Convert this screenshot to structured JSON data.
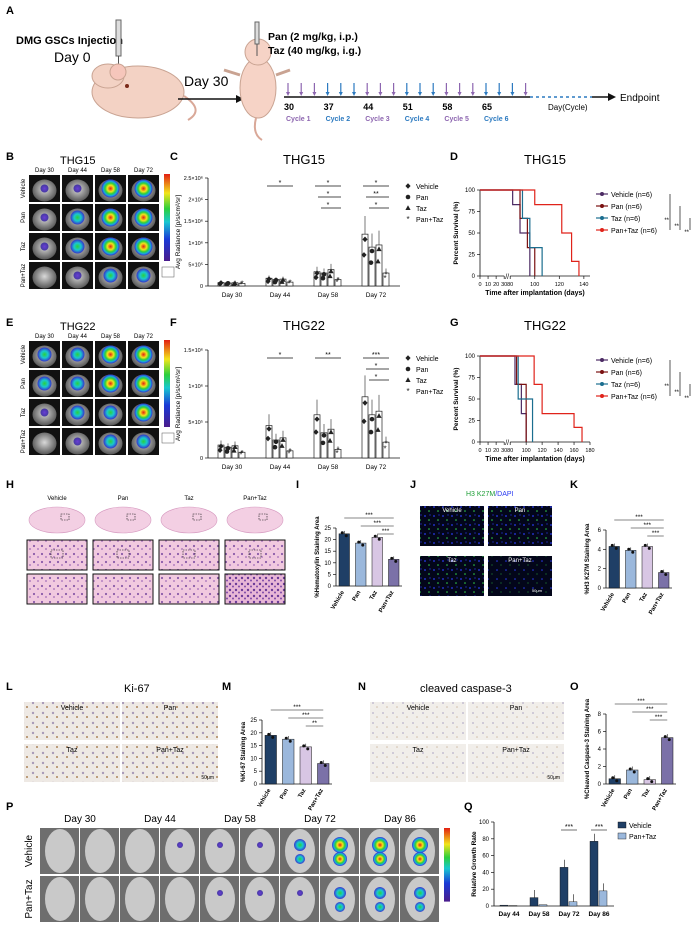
{
  "colors": {
    "vehicle": "#4b2a63",
    "pan": "#7a1111",
    "taz": "#1b6e8f",
    "pantaz": "#e0231a",
    "bar_vehicle": "#1f3f66",
    "bar_pan": "#9bb8dc",
    "bar_taz": "#d8c6e4",
    "bar_pantaz": "#7b71a8",
    "cycle_purple": "#8d66b0",
    "cycle_blue": "#2c7ac0"
  },
  "panel_letters": {
    "a": "A",
    "b": "B",
    "c": "C",
    "d": "D",
    "e": "E",
    "f": "F",
    "g": "G",
    "h": "H",
    "i": "I",
    "j": "J",
    "k": "K",
    "l": "L",
    "m": "M",
    "n": "N",
    "o": "O",
    "p": "P",
    "q": "Q"
  },
  "schematic": {
    "injection": "DMG GSCs Injection",
    "day0": "Day 0",
    "day30": "Day 30",
    "dose_pan": "Pan (2 mg/kg, i.p.)",
    "dose_taz": "Taz (40 mg/kg, i.g.)",
    "days": [
      "30",
      "37",
      "44",
      "51",
      "58",
      "65"
    ],
    "cycles": [
      "Cycle 1",
      "Cycle 2",
      "Cycle 3",
      "Cycle 4",
      "Cycle 5",
      "Cycle 6"
    ],
    "axis_label": "Day(Cycle)",
    "endpoint": "Endpoint"
  },
  "imaging": {
    "thg15_title": "THG15",
    "thg22_title": "THG22",
    "days": [
      "Day 30",
      "Day 44",
      "Day 58",
      "Day 72"
    ],
    "groups": [
      "Vehicle",
      "Pan",
      "Taz",
      "Pan+Taz"
    ]
  },
  "legend_bar": [
    "Vehicle",
    "Pan",
    "Taz",
    "Pan+Taz"
  ],
  "survival_legend": [
    "Vehicle (n=6)",
    "Pan (n=6)",
    "Taz (n=6)",
    "Pan+Taz (n=6)"
  ],
  "chart_data": [
    {
      "panel": "C",
      "type": "bar",
      "title": "THG15",
      "ylabel": "Avg Radiance [p/s/cm²/sr]",
      "categories": [
        "Day 30",
        "Day 44",
        "Day 58",
        "Day 72"
      ],
      "yticks": [
        "0",
        "5×10⁵",
        "1×10⁶",
        "1.5×10⁶",
        "2×10⁶",
        "2.5×10⁶"
      ],
      "ylim": [
        0,
        2500000
      ],
      "series": [
        {
          "name": "Vehicle",
          "values": [
            80000,
            180000,
            330000,
            1200000
          ]
        },
        {
          "name": "Pan",
          "values": [
            70000,
            150000,
            300000,
            900000
          ]
        },
        {
          "name": "Taz",
          "values": [
            75000,
            160000,
            380000,
            950000
          ]
        },
        {
          "name": "Pan+Taz",
          "values": [
            60000,
            90000,
            150000,
            300000
          ]
        }
      ],
      "sig": [
        {
          "group": 1,
          "label": "*"
        },
        {
          "group": 2,
          "label": "*"
        },
        {
          "group": 2,
          "label": "*"
        },
        {
          "group": 2,
          "label": "*"
        },
        {
          "group": 3,
          "label": "*"
        },
        {
          "group": 3,
          "label": "**"
        },
        {
          "group": 3,
          "label": "*"
        }
      ]
    },
    {
      "panel": "F",
      "type": "bar",
      "title": "THG22",
      "ylabel": "Avg Radiance [p/s/cm²/sr]",
      "categories": [
        "Day 30",
        "Day 44",
        "Day 58",
        "Day 72"
      ],
      "yticks": [
        "0",
        "5×10⁵",
        "1×10⁶",
        "1.5×10⁶"
      ],
      "ylim": [
        0,
        1500000
      ],
      "series": [
        {
          "name": "Vehicle",
          "values": [
            180000,
            450000,
            600000,
            850000
          ]
        },
        {
          "name": "Pan",
          "values": [
            150000,
            250000,
            350000,
            600000
          ]
        },
        {
          "name": "Taz",
          "values": [
            170000,
            280000,
            400000,
            650000
          ]
        },
        {
          "name": "Pan+Taz",
          "values": [
            80000,
            100000,
            120000,
            220000
          ]
        }
      ],
      "sig": [
        {
          "group": 1,
          "label": "*"
        },
        {
          "group": 2,
          "label": "**"
        },
        {
          "group": 3,
          "label": "***"
        },
        {
          "group": 3,
          "label": "*"
        },
        {
          "group": 3,
          "label": "*"
        }
      ]
    },
    {
      "panel": "D",
      "type": "line",
      "title": "THG15",
      "xlabel": "Time after implantation (days)",
      "ylabel": "Percent Survival (%)",
      "xticks": [
        "0",
        "10",
        "20",
        "30",
        "80",
        "100",
        "120",
        "140"
      ],
      "yticks": [
        "0",
        "25",
        "50",
        "75",
        "100"
      ],
      "series": [
        {
          "name": "Vehicle (n=6)",
          "steps": [
            [
              0,
              100
            ],
            [
              82,
              100
            ],
            [
              82,
              83
            ],
            [
              88,
              83
            ],
            [
              88,
              50
            ],
            [
              96,
              50
            ],
            [
              96,
              0
            ]
          ]
        },
        {
          "name": "Pan (n=6)",
          "steps": [
            [
              0,
              100
            ],
            [
              88,
              100
            ],
            [
              88,
              67
            ],
            [
              94,
              67
            ],
            [
              94,
              33
            ],
            [
              100,
              33
            ],
            [
              100,
              0
            ]
          ]
        },
        {
          "name": "Taz (n=6)",
          "steps": [
            [
              0,
              100
            ],
            [
              90,
              100
            ],
            [
              90,
              67
            ],
            [
              96,
              67
            ],
            [
              96,
              33
            ],
            [
              106,
              33
            ],
            [
              106,
              0
            ]
          ]
        },
        {
          "name": "Pan+Taz (n=6)",
          "steps": [
            [
              0,
              100
            ],
            [
              100,
              100
            ],
            [
              100,
              83
            ],
            [
              122,
              83
            ],
            [
              122,
              50
            ],
            [
              130,
              50
            ],
            [
              130,
              17
            ],
            [
              136,
              17
            ],
            [
              136,
              0
            ]
          ]
        }
      ],
      "sig": [
        "**",
        "**",
        "**"
      ]
    },
    {
      "panel": "G",
      "type": "line",
      "title": "THG22",
      "xlabel": "Time after implantation (days)",
      "ylabel": "Percent Survival (%)",
      "xticks": [
        "0",
        "10",
        "20",
        "30",
        "80",
        "100",
        "120",
        "140",
        "160",
        "180"
      ],
      "yticks": [
        "0",
        "25",
        "50",
        "75",
        "100"
      ],
      "series": [
        {
          "name": "Vehicle (n=6)",
          "steps": [
            [
              0,
              100
            ],
            [
              86,
              100
            ],
            [
              86,
              67
            ],
            [
              94,
              67
            ],
            [
              94,
              33
            ],
            [
              100,
              33
            ],
            [
              100,
              0
            ]
          ]
        },
        {
          "name": "Pan (n=6)",
          "steps": [
            [
              0,
              100
            ],
            [
              88,
              100
            ],
            [
              88,
              67
            ],
            [
              100,
              67
            ],
            [
              100,
              0
            ]
          ]
        },
        {
          "name": "Taz (n=6)",
          "steps": [
            [
              0,
              100
            ],
            [
              90,
              100
            ],
            [
              90,
              50
            ],
            [
              108,
              50
            ],
            [
              108,
              0
            ]
          ]
        },
        {
          "name": "Pan+Taz (n=6)",
          "steps": [
            [
              0,
              100
            ],
            [
              110,
              100
            ],
            [
              110,
              67
            ],
            [
              120,
              67
            ],
            [
              120,
              33
            ],
            [
              160,
              33
            ],
            [
              160,
              17
            ],
            [
              170,
              17
            ],
            [
              170,
              0
            ]
          ]
        }
      ],
      "sig": [
        "**",
        "**",
        "**"
      ]
    },
    {
      "panel": "I",
      "type": "bar",
      "ylabel": "%Hematoxylin Staining Area",
      "categories": [
        "Vehicle",
        "Pan",
        "Taz",
        "Pan+Taz"
      ],
      "yticks": [
        "0",
        "5",
        "10",
        "15",
        "20",
        "25"
      ],
      "ylim": [
        0,
        25
      ],
      "values": [
        22.5,
        18.5,
        21,
        11.5
      ],
      "sig": [
        "***",
        "***",
        "***"
      ]
    },
    {
      "panel": "K",
      "type": "bar",
      "ylabel": "%H3 K27M Staining Area",
      "categories": [
        "Vehicle",
        "Pan",
        "Taz",
        "Pan+Taz"
      ],
      "yticks": [
        "0",
        "2",
        "4",
        "6"
      ],
      "ylim": [
        0,
        6
      ],
      "values": [
        4.3,
        3.9,
        4.3,
        1.6
      ],
      "sig": [
        "***",
        "***",
        "***"
      ]
    },
    {
      "panel": "M",
      "type": "bar",
      "ylabel": "%Ki-67 Staining Area",
      "categories": [
        "Vehicle",
        "Pan",
        "Taz",
        "Pan+Taz"
      ],
      "yticks": [
        "0",
        "5",
        "10",
        "15",
        "20",
        "25"
      ],
      "ylim": [
        0,
        25
      ],
      "values": [
        19,
        17.5,
        14.5,
        8
      ],
      "sig": [
        "***",
        "***",
        "**"
      ]
    },
    {
      "panel": "O",
      "type": "bar",
      "ylabel": "%Cleaved Caspase-3 Staining Area",
      "categories": [
        "Vehicle",
        "Pan",
        "Taz",
        "Pan+Taz"
      ],
      "yticks": [
        "0",
        "2",
        "4",
        "6",
        "8"
      ],
      "ylim": [
        0,
        8
      ],
      "values": [
        0.6,
        1.6,
        0.5,
        5.3
      ],
      "sig": [
        "***",
        "***",
        "***"
      ]
    },
    {
      "panel": "Q",
      "type": "bar",
      "ylabel": "Relative Growth Rate",
      "categories": [
        "Day 44",
        "Day 58",
        "Day 72",
        "Day 86"
      ],
      "yticks": [
        "0",
        "20",
        "40",
        "60",
        "80",
        "100"
      ],
      "ylim": [
        0,
        100
      ],
      "series": [
        {
          "name": "Vehicle",
          "values": [
            1,
            10,
            46,
            77
          ]
        },
        {
          "name": "Pan+Taz",
          "values": [
            0.5,
            1.5,
            5,
            18
          ]
        }
      ],
      "sig": [
        {
          "group": 2,
          "label": "***"
        },
        {
          "group": 3,
          "label": "***"
        }
      ]
    }
  ],
  "histology": {
    "h_groups": [
      "Vehicle",
      "Pan",
      "Taz",
      "Pan+Taz"
    ],
    "j_title": "H3 K27M/DAPI",
    "j_title_a": "H3 K27M",
    "j_title_b": "/DAPI",
    "j_groups": [
      "Vehicle",
      "Pan",
      "Taz",
      "Pan+Taz"
    ],
    "l_title": "Ki-67",
    "n_title": "cleaved caspase-3",
    "groups": [
      "Vehicle",
      "Pan",
      "Taz",
      "Pan+Taz"
    ],
    "scale": "50μm"
  },
  "p_panel": {
    "days": [
      "Day 30",
      "Day 44",
      "Day 58",
      "Day 72",
      "Day 86"
    ],
    "rows": [
      "Vehicle",
      "Pan+Taz"
    ]
  },
  "q_legend": [
    "Vehicle",
    "Pan+Taz"
  ]
}
